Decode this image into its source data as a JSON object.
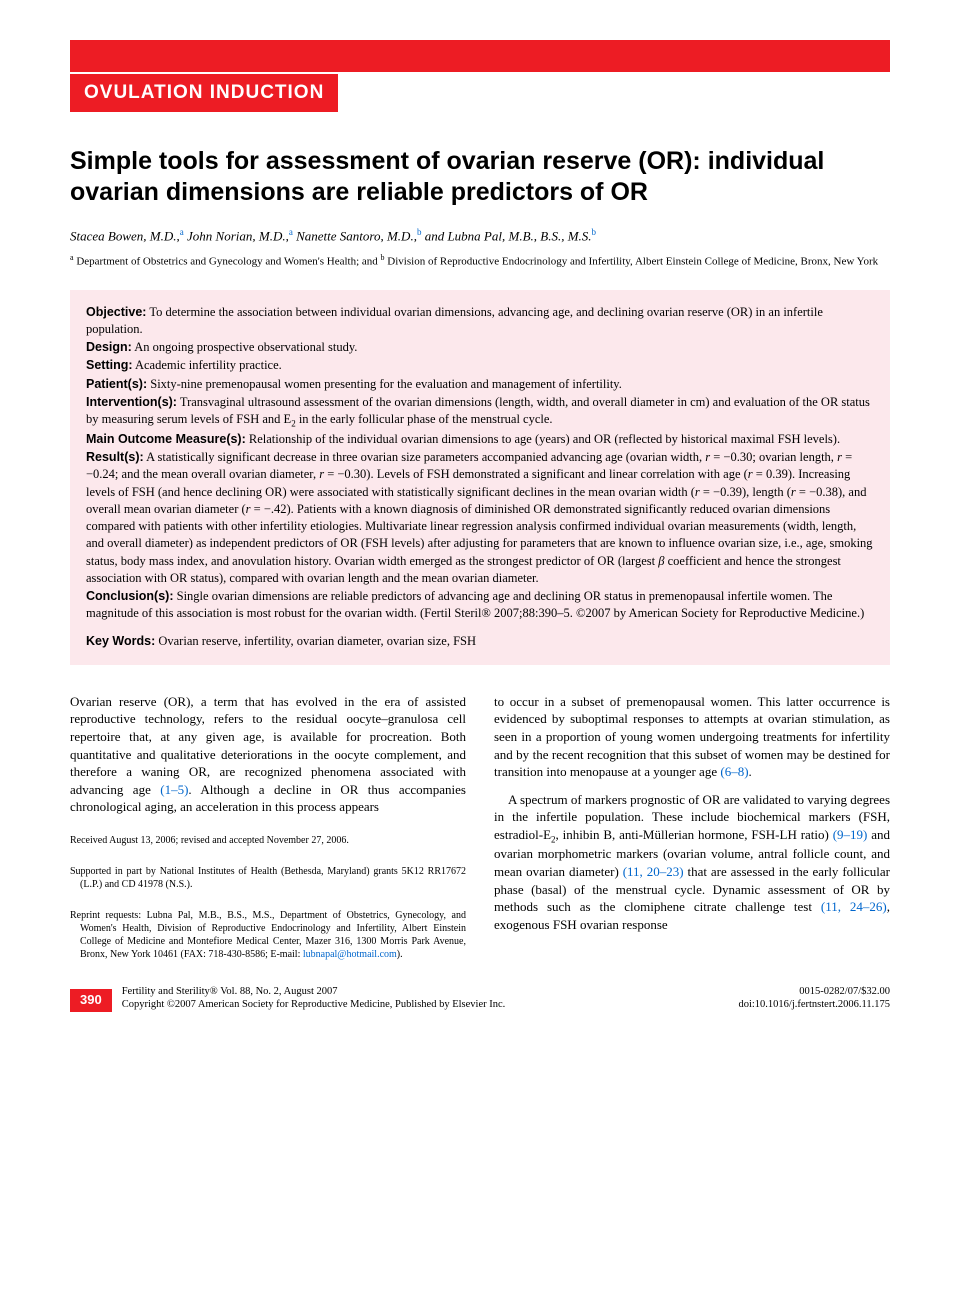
{
  "colors": {
    "accent": "#ed1c24",
    "abstract_bg": "#fce8ec",
    "link": "#0066cc",
    "text": "#000000",
    "white": "#ffffff"
  },
  "typography": {
    "body_font": "Georgia, Times New Roman, serif",
    "heading_font": "Arial, Helvetica, sans-serif",
    "title_size_pt": 25,
    "section_label_size_pt": 19,
    "body_size_pt": 13,
    "abstract_size_pt": 12.5,
    "footnote_size_pt": 10
  },
  "header": {
    "section_label": "OVULATION INDUCTION"
  },
  "title": "Simple tools for assessment of ovarian reserve (OR): individual ovarian dimensions are reliable predictors of OR",
  "authors_html": "Stacea Bowen, M.D.,<sup>a</sup> John Norian, M.D.,<sup>a</sup> Nanette Santoro, M.D.,<sup>b</sup> and Lubna Pal, M.B., B.S., M.S.<sup>b</sup>",
  "affiliations_html": "<sup>a</sup> Department of Obstetrics and Gynecology and Women's Health; and <sup>b</sup> Division of Reproductive Endocrinology and Infertility, Albert Einstein College of Medicine, Bronx, New York",
  "abstract": {
    "objective": {
      "label": "Objective:",
      "text": " To determine the association between individual ovarian dimensions, advancing age, and declining ovarian reserve (OR) in an infertile population."
    },
    "design": {
      "label": "Design:",
      "text": " An ongoing prospective observational study."
    },
    "setting": {
      "label": "Setting:",
      "text": " Academic infertility practice."
    },
    "patients": {
      "label": "Patient(s):",
      "text": " Sixty-nine premenopausal women presenting for the evaluation and management of infertility."
    },
    "interventions": {
      "label": "Intervention(s):",
      "text_html": " Transvaginal ultrasound assessment of the ovarian dimensions (length, width, and overall diameter in cm) and evaluation of the OR status by measuring serum levels of FSH and E<sub>2</sub> in the early follicular phase of the menstrual cycle."
    },
    "outcomes": {
      "label": "Main Outcome Measure(s):",
      "text": " Relationship of the individual ovarian dimensions to age (years) and OR (reflected by historical maximal FSH levels)."
    },
    "results": {
      "label": "Result(s):",
      "text_html": " A statistically significant decrease in three ovarian size parameters accompanied advancing age (ovarian width, <i>r</i> = −0.30; ovarian length, <i>r</i> = −0.24; and the mean overall ovarian diameter, <i>r</i> = −0.30). Levels of FSH demonstrated a significant and linear correlation with age (<i>r</i> = 0.39). Increasing levels of FSH (and hence declining OR) were associated with statistically significant declines in the mean ovarian width (<i>r</i> = −0.39), length (<i>r</i> = −0.38), and overall mean ovarian diameter (<i>r</i> = −.42). Patients with a known diagnosis of diminished OR demonstrated significantly reduced ovarian dimensions compared with patients with other infertility etiologies. Multivariate linear regression analysis confirmed individual ovarian measurements (width, length, and overall diameter) as independent predictors of OR (FSH levels) after adjusting for parameters that are known to influence ovarian size, i.e., age, smoking status, body mass index, and anovulation history. Ovarian width emerged as the strongest predictor of OR (largest <i>β</i> coefficient and hence the strongest association with OR status), compared with ovarian length and the mean ovarian diameter."
    },
    "conclusions": {
      "label": "Conclusion(s):",
      "text": " Single ovarian dimensions are reliable predictors of advancing age and declining OR status in premenopausal infertile women. The magnitude of this association is most robust for the ovarian width. (Fertil Steril® 2007;88:390–5. ©2007 by American Society for Reproductive Medicine.)"
    },
    "keywords": {
      "label": "Key Words:",
      "text": " Ovarian reserve, infertility, ovarian diameter, ovarian size, FSH"
    }
  },
  "body": {
    "col1": {
      "p1_html": "Ovarian reserve (OR), a term that has evolved in the era of assisted reproductive technology, refers to the residual oocyte–granulosa cell repertoire that, at any given age, is available for procreation. Both quantitative and qualitative deteriorations in the oocyte complement, and therefore a waning OR, are recognized phenomena associated with advancing age <span class=\"ref-link\">(1–5)</span>. Although a decline in OR thus accompanies chronological aging, an acceleration in this process appears",
      "fn1": "Received August 13, 2006; revised and accepted November 27, 2006.",
      "fn2": "Supported in part by National Institutes of Health (Bethesda, Maryland) grants 5K12 RR17672 (L.P.) and CD 41978 (N.S.).",
      "fn3_html": "Reprint requests: Lubna Pal, M.B., B.S., M.S., Department of Obstetrics, Gynecology, and Women's Health, Division of Reproductive Endocrinology and Infertility, Albert Einstein College of Medicine and Montefiore Medical Center, Mazer 316, 1300 Morris Park Avenue, Bronx, New York 10461 (FAX: 718-430-8586; E-mail: <span class=\"ref-link\">lubnapal@hotmail.com</span>)."
    },
    "col2": {
      "p1_html": "to occur in a subset of premenopausal women. This latter occurrence is evidenced by suboptimal responses to attempts at ovarian stimulation, as seen in a proportion of young women undergoing treatments for infertility and by the recent recognition that this subset of women may be destined for transition into menopause at a younger age <span class=\"ref-link\">(6–8)</span>.",
      "p2_html": "A spectrum of markers prognostic of OR are validated to varying degrees in the infertile population. These include biochemical markers (FSH, estradiol-E<sub>2</sub>, inhibin B, anti-Müllerian hormone, FSH-LH ratio) <span class=\"ref-link\">(9–19)</span> and ovarian morphometric markers (ovarian volume, antral follicle count, and mean ovarian diameter) <span class=\"ref-link\">(11, 20–23)</span> that are assessed in the early follicular phase (basal) of the menstrual cycle. Dynamic assessment of OR by methods such as the clomiphene citrate challenge test <span class=\"ref-link\">(11, 24–26)</span>, exogenous FSH ovarian response"
    }
  },
  "footer": {
    "page_number": "390",
    "journal_line": "Fertility and Sterility® Vol. 88, No. 2, August 2007",
    "copyright_line": "Copyright ©2007 American Society for Reproductive Medicine, Published by Elsevier Inc.",
    "issn": "0015-0282/07/$32.00",
    "doi": "doi:10.1016/j.fertnstert.2006.11.175"
  }
}
